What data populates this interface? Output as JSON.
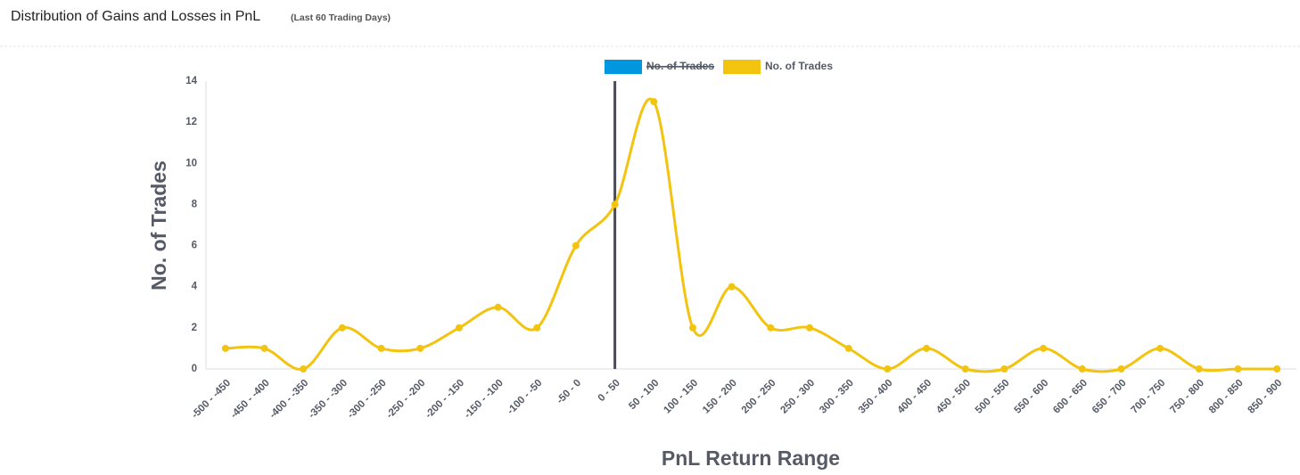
{
  "chart_data": {
    "type": "line",
    "title": "Distribution of Gains and Losses in PnL",
    "subtitle": "(Last 60 Trading Days)",
    "x_label": "PnL Return Range",
    "y_label": "No. of Trades",
    "categories": [
      "-500 - -450",
      "-450 - -400",
      "-400 - -350",
      "-350 - -300",
      "-300 - -250",
      "-250 - -200",
      "-200 - -150",
      "-150 - -100",
      "-100 - -50",
      "-50 - 0",
      "0 - 50",
      "50 - 100",
      "100 - 150",
      "150 - 200",
      "200 - 250",
      "250 - 300",
      "300 - 350",
      "350 - 400",
      "400 - 450",
      "450 - 500",
      "500 - 550",
      "550 - 600",
      "600 - 650",
      "650 - 700",
      "700 - 750",
      "750 - 800",
      "800 - 850",
      "850 - 900"
    ],
    "series": [
      {
        "name": "No. of Trades",
        "color": "#0096e0",
        "hidden": true
      },
      {
        "name": "No. of Trades",
        "color": "#f2c40f",
        "values": [
          1,
          1,
          0,
          2,
          1,
          1,
          2,
          3,
          2,
          6,
          8,
          13,
          2,
          4,
          2,
          2,
          1,
          0,
          1,
          0,
          0,
          1,
          0,
          0,
          1,
          0,
          0,
          0
        ]
      }
    ],
    "reference_line_category": "0 - 50",
    "reference_line_color": "#4a4a55",
    "ylim": [
      0,
      14
    ],
    "yticks": [
      0,
      2,
      4,
      6,
      8,
      10,
      12,
      14
    ]
  }
}
